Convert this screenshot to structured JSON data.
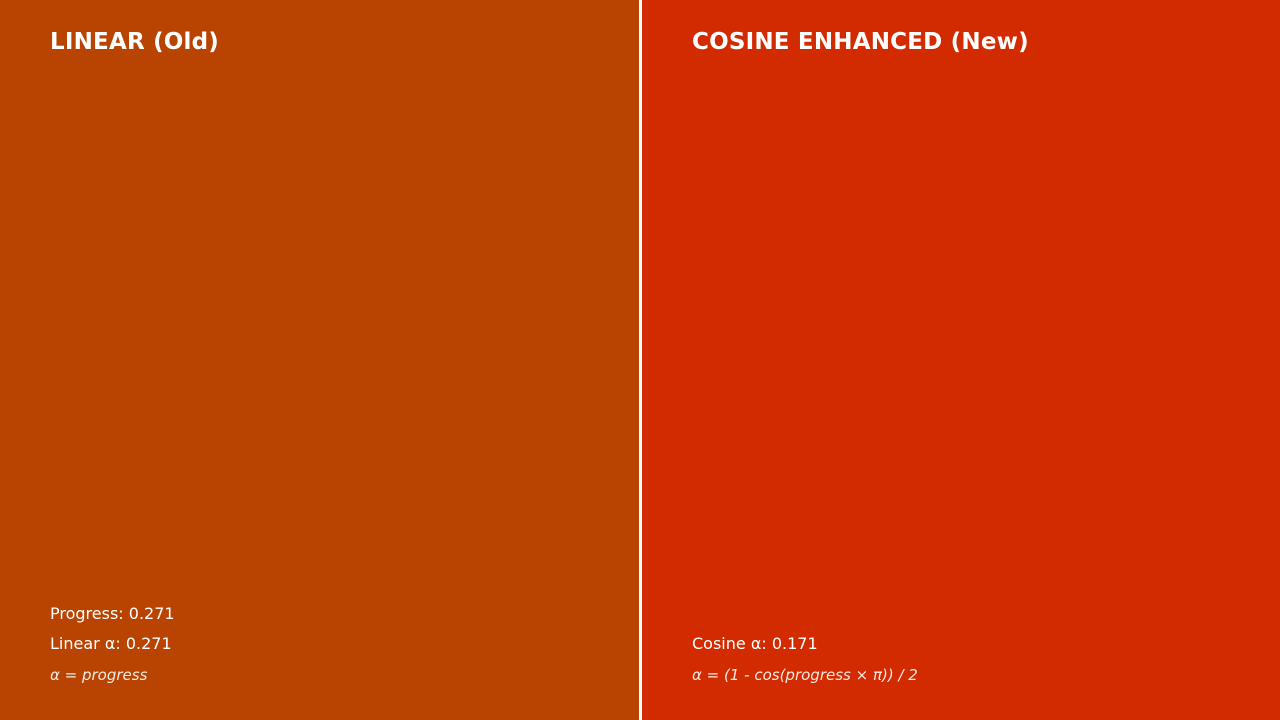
{
  "colors": {
    "left_bg": "#b94300",
    "right_bg": "#d32b00",
    "divider": "#ffffff",
    "text": "#ffffff"
  },
  "left": {
    "title": "LINEAR (Old)",
    "progress_text": "Progress: 0.271",
    "alpha_text": "Linear α: 0.271",
    "formula": "α = progress"
  },
  "right": {
    "title": "COSINE ENHANCED (New)",
    "alpha_text": "Cosine α: 0.171",
    "formula": "α = (1 - cos(progress × π)) / 2"
  },
  "values": {
    "progress": 0.271,
    "linear_alpha": 0.271,
    "cosine_alpha": 0.171
  }
}
